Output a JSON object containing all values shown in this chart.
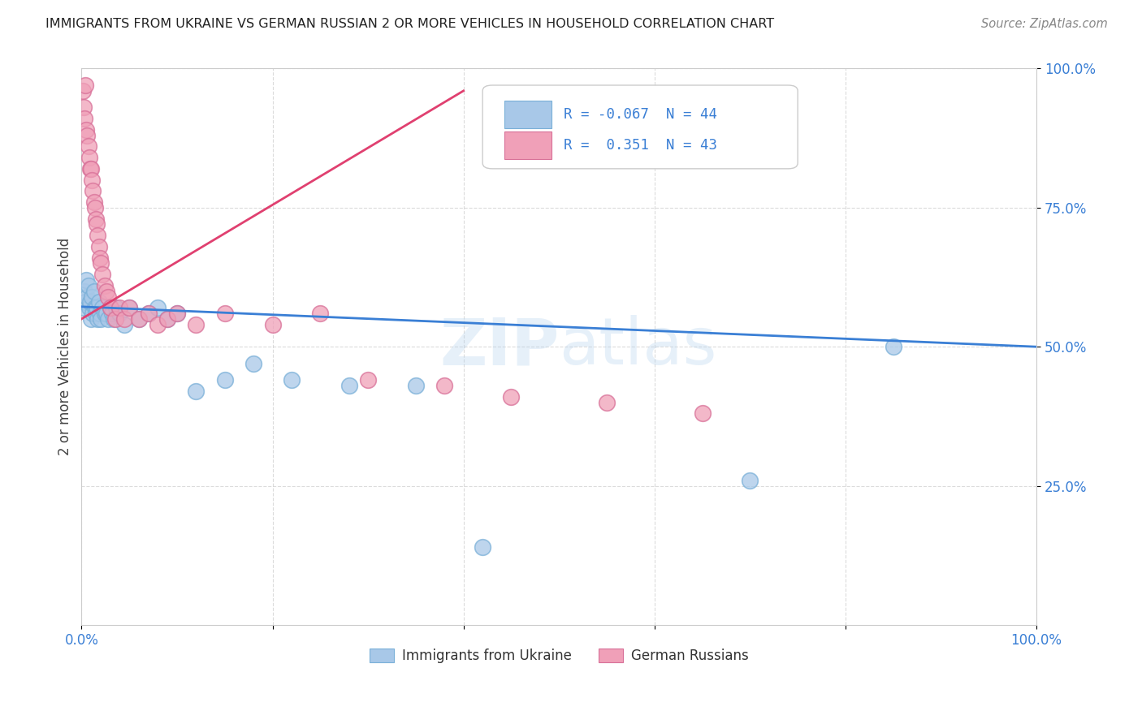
{
  "title": "IMMIGRANTS FROM UKRAINE VS GERMAN RUSSIAN 2 OR MORE VEHICLES IN HOUSEHOLD CORRELATION CHART",
  "source": "Source: ZipAtlas.com",
  "ylabel": "2 or more Vehicles in Household",
  "xlim": [
    0.0,
    1.0
  ],
  "ylim": [
    0.0,
    1.0
  ],
  "legend_labels": [
    "Immigrants from Ukraine",
    "German Russians"
  ],
  "blue_color": "#a8c8e8",
  "pink_color": "#f0a0b8",
  "blue_line_color": "#3a7fd5",
  "pink_line_color": "#e04070",
  "R_blue": -0.067,
  "N_blue": 44,
  "R_pink": 0.351,
  "N_pink": 43,
  "watermark": "ZIPatlas",
  "blue_scatter_x": [
    0.002,
    0.003,
    0.004,
    0.005,
    0.006,
    0.007,
    0.008,
    0.009,
    0.01,
    0.011,
    0.012,
    0.013,
    0.014,
    0.015,
    0.016,
    0.017,
    0.018,
    0.019,
    0.02,
    0.022,
    0.024,
    0.026,
    0.028,
    0.03,
    0.032,
    0.034,
    0.036,
    0.04,
    0.045,
    0.05,
    0.06,
    0.07,
    0.08,
    0.09,
    0.1,
    0.12,
    0.15,
    0.18,
    0.22,
    0.28,
    0.35,
    0.42,
    0.7,
    0.85
  ],
  "blue_scatter_y": [
    0.57,
    0.6,
    0.58,
    0.62,
    0.59,
    0.61,
    0.57,
    0.58,
    0.55,
    0.59,
    0.56,
    0.6,
    0.57,
    0.56,
    0.57,
    0.55,
    0.58,
    0.56,
    0.55,
    0.57,
    0.56,
    0.56,
    0.55,
    0.57,
    0.56,
    0.55,
    0.57,
    0.56,
    0.54,
    0.57,
    0.55,
    0.56,
    0.57,
    0.55,
    0.56,
    0.42,
    0.44,
    0.47,
    0.44,
    0.43,
    0.43,
    0.14,
    0.26,
    0.5
  ],
  "pink_scatter_x": [
    0.001,
    0.002,
    0.003,
    0.004,
    0.005,
    0.006,
    0.007,
    0.008,
    0.009,
    0.01,
    0.011,
    0.012,
    0.013,
    0.014,
    0.015,
    0.016,
    0.017,
    0.018,
    0.019,
    0.02,
    0.022,
    0.024,
    0.026,
    0.028,
    0.03,
    0.035,
    0.04,
    0.045,
    0.05,
    0.06,
    0.07,
    0.08,
    0.09,
    0.1,
    0.12,
    0.15,
    0.2,
    0.25,
    0.3,
    0.38,
    0.45,
    0.55,
    0.65
  ],
  "pink_scatter_y": [
    0.96,
    0.93,
    0.91,
    0.97,
    0.89,
    0.88,
    0.86,
    0.84,
    0.82,
    0.82,
    0.8,
    0.78,
    0.76,
    0.75,
    0.73,
    0.72,
    0.7,
    0.68,
    0.66,
    0.65,
    0.63,
    0.61,
    0.6,
    0.59,
    0.57,
    0.55,
    0.57,
    0.55,
    0.57,
    0.55,
    0.56,
    0.54,
    0.55,
    0.56,
    0.54,
    0.56,
    0.54,
    0.56,
    0.44,
    0.43,
    0.41,
    0.4,
    0.38
  ],
  "blue_line_x": [
    0.0,
    1.0
  ],
  "blue_line_y": [
    0.572,
    0.5
  ],
  "pink_line_x": [
    0.0,
    0.4
  ],
  "pink_line_y": [
    0.55,
    0.96
  ]
}
